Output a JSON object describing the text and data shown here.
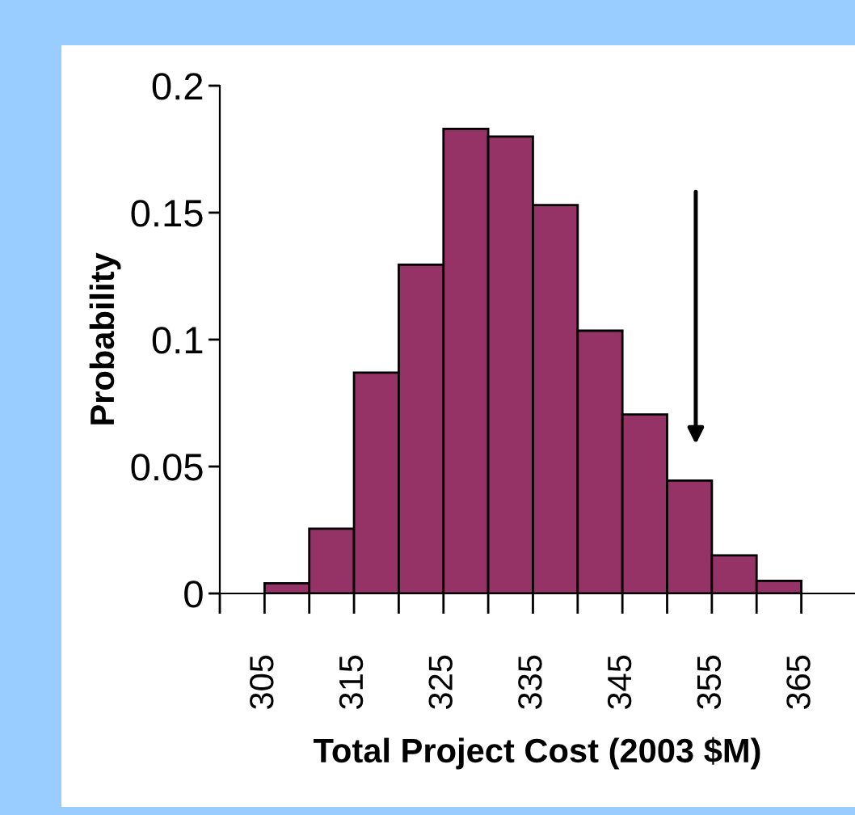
{
  "chart_data": {
    "type": "histogram",
    "xlabel": "Total Project Cost (2003 $M)",
    "ylabel": "Probability",
    "bins": [
      305,
      310,
      315,
      320,
      325,
      330,
      335,
      340,
      345,
      350,
      355,
      360,
      365
    ],
    "values": [
      0.004,
      0.0255,
      0.087,
      0.1295,
      0.183,
      0.18,
      0.153,
      0.1035,
      0.0705,
      0.0445,
      0.015,
      0.005
    ],
    "color": "#963366",
    "xlim": [
      300,
      371
    ],
    "ylim": [
      0,
      0.2
    ],
    "xticks": [
      {
        "value": 300,
        "label": null
      },
      305,
      {
        "value": 310,
        "label": null
      },
      315,
      {
        "value": 320,
        "label": null
      },
      325,
      {
        "value": 330,
        "label": null
      },
      335,
      {
        "value": 340,
        "label": null
      },
      345,
      {
        "value": 350,
        "label": null
      },
      355,
      {
        "value": 360,
        "label": null
      },
      365
    ],
    "yticks": [
      0,
      {
        "value": 0.05,
        "label": "0.05"
      },
      {
        "value": 0.1,
        "label": "0.1"
      },
      {
        "value": 0.15,
        "label": "0.15"
      },
      {
        "value": 0.2,
        "label": "0.2"
      }
    ],
    "grid": false
  }
}
